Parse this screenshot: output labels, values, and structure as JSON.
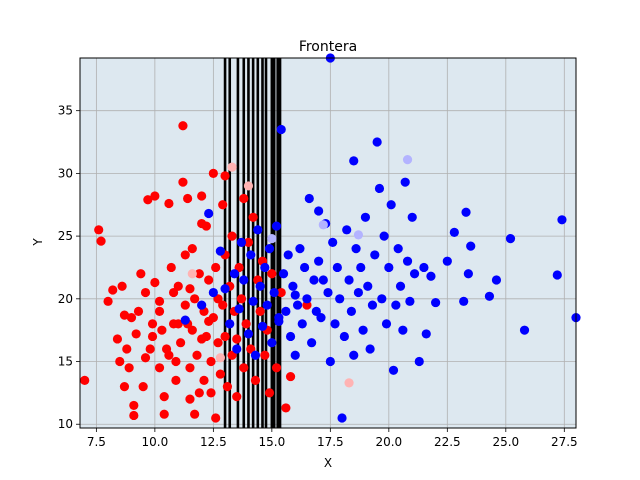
{
  "chart_data": {
    "type": "scatter",
    "title": "Frontera",
    "xlabel": "X",
    "ylabel": "Y",
    "xlim": [
      6.8,
      28.0
    ],
    "ylim": [
      9.7,
      39.2
    ],
    "xticks": [
      "7.5",
      "10.0",
      "12.5",
      "15.0",
      "17.5",
      "20.0",
      "22.5",
      "25.0",
      "27.5"
    ],
    "yticks": [
      "10",
      "15",
      "20",
      "25",
      "30",
      "35"
    ],
    "grid": true,
    "background_color": "#dde8f0",
    "boundary_x": [
      13.0,
      13.2,
      13.55,
      13.8,
      14.0,
      14.2,
      14.4,
      14.6,
      14.75,
      15.0,
      15.1,
      15.25,
      15.35
    ],
    "series": [
      {
        "color": "#ff0000",
        "points": [
          [
            7.0,
            13.5
          ],
          [
            7.6,
            25.5
          ],
          [
            7.7,
            24.6
          ],
          [
            8.0,
            19.8
          ],
          [
            8.2,
            20.7
          ],
          [
            8.4,
            16.8
          ],
          [
            8.6,
            21.0
          ],
          [
            8.7,
            18.7
          ],
          [
            8.7,
            13.0
          ],
          [
            8.8,
            16.0
          ],
          [
            8.9,
            14.5
          ],
          [
            9.0,
            18.5
          ],
          [
            9.1,
            11.5
          ],
          [
            9.1,
            10.7
          ],
          [
            9.2,
            17.2
          ],
          [
            9.3,
            19.0
          ],
          [
            9.4,
            22.0
          ],
          [
            9.5,
            13.0
          ],
          [
            9.6,
            20.5
          ],
          [
            9.6,
            15.3
          ],
          [
            9.7,
            27.9
          ],
          [
            9.8,
            16.0
          ],
          [
            9.9,
            18.0
          ],
          [
            10.0,
            28.2
          ],
          [
            10.0,
            21.3
          ],
          [
            10.2,
            19.8
          ],
          [
            10.2,
            14.5
          ],
          [
            10.3,
            17.5
          ],
          [
            10.4,
            12.2
          ],
          [
            10.4,
            10.8
          ],
          [
            10.5,
            16.0
          ],
          [
            10.6,
            27.6
          ],
          [
            10.7,
            22.5
          ],
          [
            10.8,
            18.0
          ],
          [
            10.8,
            20.5
          ],
          [
            10.9,
            15.0
          ],
          [
            10.9,
            13.5
          ],
          [
            11.0,
            21.0
          ],
          [
            11.1,
            16.5
          ],
          [
            11.2,
            33.8
          ],
          [
            11.2,
            29.3
          ],
          [
            11.3,
            19.5
          ],
          [
            11.3,
            23.5
          ],
          [
            11.4,
            18.0
          ],
          [
            11.4,
            28.0
          ],
          [
            11.5,
            14.5
          ],
          [
            11.5,
            12.0
          ],
          [
            11.6,
            17.5
          ],
          [
            11.6,
            24.0
          ],
          [
            11.7,
            20.0
          ],
          [
            11.7,
            10.8
          ],
          [
            11.8,
            15.5
          ],
          [
            11.9,
            22.0
          ],
          [
            12.0,
            26.0
          ],
          [
            12.0,
            28.2
          ],
          [
            12.1,
            19.0
          ],
          [
            12.1,
            13.5
          ],
          [
            12.2,
            17.0
          ],
          [
            12.2,
            25.8
          ],
          [
            12.3,
            21.5
          ],
          [
            12.4,
            12.5
          ],
          [
            12.4,
            15.0
          ],
          [
            12.5,
            30.0
          ],
          [
            12.5,
            18.5
          ],
          [
            12.6,
            22.5
          ],
          [
            12.6,
            10.5
          ],
          [
            12.7,
            16.5
          ],
          [
            12.7,
            20.0
          ],
          [
            12.8,
            14.0
          ],
          [
            12.9,
            27.5
          ],
          [
            12.9,
            19.5
          ],
          [
            13.0,
            29.8
          ],
          [
            13.0,
            23.5
          ],
          [
            13.0,
            17.0
          ],
          [
            13.1,
            13.0
          ],
          [
            13.2,
            21.0
          ],
          [
            13.3,
            15.5
          ],
          [
            13.3,
            25.0
          ],
          [
            13.4,
            19.0
          ],
          [
            13.5,
            16.8
          ],
          [
            13.5,
            12.2
          ],
          [
            13.6,
            22.5
          ],
          [
            13.7,
            20.0
          ],
          [
            13.8,
            28.0
          ],
          [
            13.8,
            14.5
          ],
          [
            13.9,
            18.0
          ],
          [
            14.0,
            24.5
          ],
          [
            14.1,
            16.0
          ],
          [
            14.2,
            26.5
          ],
          [
            14.3,
            13.5
          ],
          [
            14.4,
            21.5
          ],
          [
            14.5,
            19.0
          ],
          [
            14.6,
            23.0
          ],
          [
            14.7,
            15.5
          ],
          [
            14.8,
            17.5
          ],
          [
            14.9,
            12.5
          ],
          [
            15.0,
            22.0
          ],
          [
            15.2,
            14.5
          ],
          [
            15.4,
            20.5
          ],
          [
            15.6,
            11.3
          ],
          [
            15.8,
            13.8
          ],
          [
            16.5,
            19.5
          ],
          [
            10.2,
            19.0
          ],
          [
            11.0,
            18.0
          ],
          [
            9.9,
            17.0
          ],
          [
            12.0,
            16.8
          ],
          [
            11.5,
            20.8
          ],
          [
            10.6,
            15.5
          ],
          [
            12.3,
            18.2
          ],
          [
            8.5,
            15.0
          ],
          [
            11.9,
            12.5
          ]
        ]
      },
      {
        "color": "#0000ff",
        "points": [
          [
            11.3,
            18.3
          ],
          [
            12.0,
            19.5
          ],
          [
            12.5,
            20.5
          ],
          [
            12.3,
            26.8
          ],
          [
            12.8,
            23.8
          ],
          [
            13.2,
            18.0
          ],
          [
            13.4,
            22.0
          ],
          [
            13.5,
            16.0
          ],
          [
            13.6,
            19.2
          ],
          [
            13.7,
            24.5
          ],
          [
            13.8,
            21.5
          ],
          [
            14.0,
            17.2
          ],
          [
            14.1,
            23.5
          ],
          [
            14.2,
            19.8
          ],
          [
            14.3,
            15.5
          ],
          [
            14.4,
            25.5
          ],
          [
            14.5,
            21.0
          ],
          [
            14.6,
            17.8
          ],
          [
            14.7,
            22.5
          ],
          [
            14.8,
            19.5
          ],
          [
            14.9,
            24.0
          ],
          [
            15.0,
            16.5
          ],
          [
            15.1,
            20.5
          ],
          [
            15.2,
            25.8
          ],
          [
            15.3,
            18.5
          ],
          [
            15.4,
            33.5
          ],
          [
            15.5,
            22.0
          ],
          [
            15.6,
            19.0
          ],
          [
            15.7,
            23.5
          ],
          [
            15.8,
            17.0
          ],
          [
            15.9,
            21.0
          ],
          [
            16.0,
            15.5
          ],
          [
            16.1,
            19.5
          ],
          [
            16.2,
            24.0
          ],
          [
            16.3,
            18.0
          ],
          [
            16.4,
            22.5
          ],
          [
            16.5,
            20.0
          ],
          [
            16.6,
            28.0
          ],
          [
            16.7,
            16.5
          ],
          [
            16.8,
            21.5
          ],
          [
            16.9,
            19.0
          ],
          [
            17.0,
            27.0
          ],
          [
            17.0,
            23.0
          ],
          [
            17.1,
            18.5
          ],
          [
            17.2,
            21.5
          ],
          [
            17.3,
            26.0
          ],
          [
            17.4,
            20.5
          ],
          [
            17.5,
            39.2
          ],
          [
            17.5,
            15.0
          ],
          [
            17.6,
            24.5
          ],
          [
            17.7,
            18.0
          ],
          [
            17.8,
            22.5
          ],
          [
            17.9,
            20.0
          ],
          [
            18.0,
            10.5
          ],
          [
            18.1,
            17.0
          ],
          [
            18.2,
            25.5
          ],
          [
            18.3,
            21.5
          ],
          [
            18.4,
            19.0
          ],
          [
            18.5,
            31.0
          ],
          [
            18.5,
            15.5
          ],
          [
            18.6,
            24.0
          ],
          [
            18.7,
            20.5
          ],
          [
            18.8,
            22.5
          ],
          [
            18.9,
            17.5
          ],
          [
            19.0,
            26.5
          ],
          [
            19.1,
            21.0
          ],
          [
            19.2,
            16.0
          ],
          [
            19.3,
            19.5
          ],
          [
            19.4,
            23.5
          ],
          [
            19.5,
            32.5
          ],
          [
            19.6,
            28.8
          ],
          [
            19.7,
            20.0
          ],
          [
            19.8,
            25.0
          ],
          [
            19.9,
            18.0
          ],
          [
            20.0,
            22.5
          ],
          [
            20.1,
            27.5
          ],
          [
            20.2,
            14.3
          ],
          [
            20.3,
            19.5
          ],
          [
            20.4,
            24.0
          ],
          [
            20.5,
            21.0
          ],
          [
            20.6,
            17.5
          ],
          [
            20.7,
            29.3
          ],
          [
            20.8,
            23.0
          ],
          [
            20.9,
            19.8
          ],
          [
            21.0,
            26.5
          ],
          [
            21.1,
            22.0
          ],
          [
            21.3,
            15.0
          ],
          [
            21.5,
            22.5
          ],
          [
            21.6,
            17.2
          ],
          [
            21.8,
            21.8
          ],
          [
            22.0,
            19.7
          ],
          [
            22.5,
            23.0
          ],
          [
            22.8,
            25.3
          ],
          [
            23.2,
            19.8
          ],
          [
            23.3,
            26.9
          ],
          [
            23.4,
            22.0
          ],
          [
            23.5,
            24.2
          ],
          [
            24.3,
            20.2
          ],
          [
            24.6,
            21.5
          ],
          [
            25.2,
            24.8
          ],
          [
            25.8,
            17.5
          ],
          [
            27.2,
            21.9
          ],
          [
            27.4,
            26.3
          ],
          [
            28.0,
            18.5
          ],
          [
            15.3,
            18.2
          ],
          [
            16.0,
            20.3
          ],
          [
            13.0,
            20.8
          ]
        ]
      },
      {
        "color": "#ffb3b3",
        "points": [
          [
            11.6,
            22.0
          ],
          [
            13.3,
            30.5
          ],
          [
            18.3,
            13.3
          ],
          [
            14.0,
            29.0
          ],
          [
            12.8,
            15.3
          ]
        ]
      },
      {
        "color": "#b3b3ff",
        "points": [
          [
            17.2,
            25.9
          ],
          [
            20.8,
            31.1
          ],
          [
            18.7,
            25.1
          ],
          [
            15.0,
            24.8
          ]
        ]
      }
    ]
  }
}
